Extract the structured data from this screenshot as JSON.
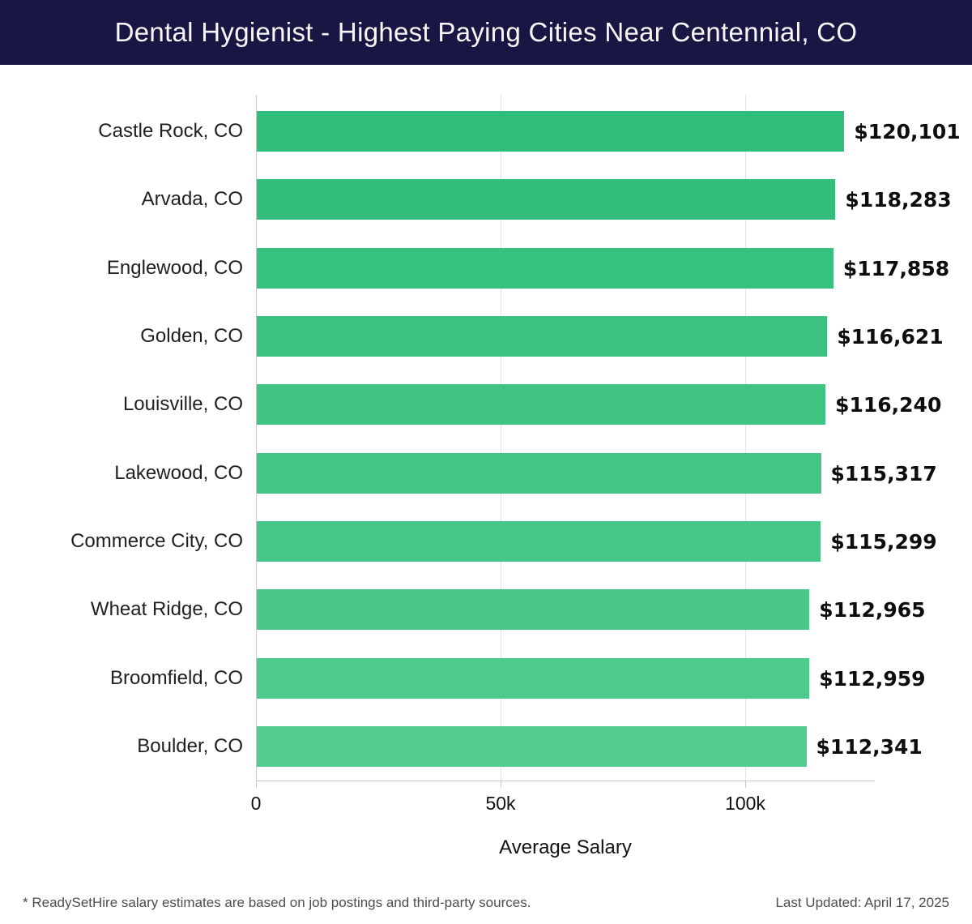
{
  "header": {
    "title": "Dental Hygienist - Highest Paying Cities Near Centennial, CO",
    "bg_color": "#1a1643",
    "text_color": "#f7f7f7"
  },
  "chart_data": {
    "type": "bar",
    "orientation": "horizontal",
    "title": "Dental Hygienist - Highest Paying Cities Near Centennial, CO",
    "categories": [
      "Castle Rock, CO",
      "Arvada, CO",
      "Englewood, CO",
      "Golden, CO",
      "Louisville, CO",
      "Lakewood, CO",
      "Commerce City, CO",
      "Wheat Ridge, CO",
      "Broomfield, CO",
      "Boulder, CO"
    ],
    "values": [
      120101,
      118283,
      117858,
      116621,
      116240,
      115317,
      115299,
      112965,
      112959,
      112341
    ],
    "value_labels": [
      "$120,101",
      "$118,283",
      "$117,858",
      "$116,621",
      "$116,240",
      "$115,317",
      "$115,299",
      "$112,965",
      "$112,959",
      "$112,341"
    ],
    "bar_colors": [
      "#2fbe79",
      "#33bf7b",
      "#37c17e",
      "#3bc280",
      "#3fc482",
      "#42c585",
      "#46c787",
      "#4ac889",
      "#4eca8c",
      "#52cb8e"
    ],
    "xlabel": "Average Salary",
    "ylabel": "",
    "x_ticks": [
      {
        "label": "0",
        "value": 0
      },
      {
        "label": "50k",
        "value": 50000
      },
      {
        "label": "100k",
        "value": 100000
      }
    ],
    "xlim": [
      0,
      126500
    ],
    "grid": "vertical lines at x ticks",
    "legend": "none"
  },
  "footer": {
    "disclaimer": "* ReadySetHire salary estimates are based on job postings and third-party sources.",
    "last_updated": "Last Updated: April 17, 2025"
  }
}
